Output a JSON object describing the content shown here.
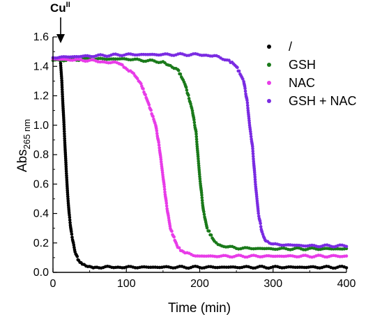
{
  "chart_data": {
    "type": "scatter",
    "title": "",
    "xlabel": "Time (min)",
    "ylabel": "Abs",
    "ylabel_subscript": "265 nm",
    "xlim": [
      0,
      400
    ],
    "ylim": [
      0,
      1.6
    ],
    "x_ticks": [
      0,
      100,
      200,
      300,
      400
    ],
    "y_ticks": [
      0.0,
      0.2,
      0.4,
      0.6,
      0.8,
      1.0,
      1.2,
      1.4,
      1.6
    ],
    "x_tick_labels": [
      "0",
      "100",
      "200",
      "300",
      "400"
    ],
    "y_tick_labels": [
      "0.0",
      "0.2",
      "0.4",
      "0.6",
      "0.8",
      "1.0",
      "1.2",
      "1.4",
      "1.6"
    ],
    "grid": false,
    "legend_position": "top-right",
    "annotation": {
      "text": "Cu",
      "superscript": "II",
      "x": 10,
      "arrow": "down"
    },
    "series": [
      {
        "name": "/",
        "color": "#000000",
        "points": [
          [
            10,
            1.45
          ],
          [
            12,
            1.3
          ],
          [
            14,
            1.1
          ],
          [
            16,
            0.9
          ],
          [
            18,
            0.7
          ],
          [
            20,
            0.53
          ],
          [
            22,
            0.4
          ],
          [
            25,
            0.27
          ],
          [
            30,
            0.14
          ],
          [
            35,
            0.08
          ],
          [
            40,
            0.055
          ],
          [
            50,
            0.04
          ],
          [
            60,
            0.035
          ],
          [
            100,
            0.035
          ],
          [
            200,
            0.035
          ],
          [
            300,
            0.035
          ],
          [
            400,
            0.035
          ]
        ]
      },
      {
        "name": "GSH",
        "color": "#1a7a1a",
        "points": [
          [
            0,
            1.44
          ],
          [
            50,
            1.45
          ],
          [
            100,
            1.45
          ],
          [
            150,
            1.43
          ],
          [
            170,
            1.38
          ],
          [
            180,
            1.28
          ],
          [
            190,
            1.1
          ],
          [
            195,
            0.95
          ],
          [
            200,
            0.65
          ],
          [
            205,
            0.42
          ],
          [
            210,
            0.3
          ],
          [
            220,
            0.21
          ],
          [
            230,
            0.18
          ],
          [
            250,
            0.165
          ],
          [
            300,
            0.16
          ],
          [
            350,
            0.16
          ],
          [
            400,
            0.16
          ]
        ]
      },
      {
        "name": "NAC",
        "color": "#e83ce8",
        "points": [
          [
            0,
            1.45
          ],
          [
            50,
            1.44
          ],
          [
            90,
            1.42
          ],
          [
            110,
            1.35
          ],
          [
            120,
            1.28
          ],
          [
            130,
            1.15
          ],
          [
            140,
            1.0
          ],
          [
            145,
            0.85
          ],
          [
            150,
            0.65
          ],
          [
            155,
            0.45
          ],
          [
            160,
            0.3
          ],
          [
            170,
            0.17
          ],
          [
            180,
            0.13
          ],
          [
            200,
            0.11
          ],
          [
            250,
            0.11
          ],
          [
            300,
            0.11
          ],
          [
            350,
            0.11
          ],
          [
            400,
            0.11
          ]
        ]
      },
      {
        "name": "GSH + NAC",
        "color": "#7a2be2",
        "points": [
          [
            0,
            1.46
          ],
          [
            50,
            1.47
          ],
          [
            100,
            1.48
          ],
          [
            150,
            1.48
          ],
          [
            200,
            1.48
          ],
          [
            220,
            1.47
          ],
          [
            240,
            1.44
          ],
          [
            250,
            1.4
          ],
          [
            260,
            1.3
          ],
          [
            265,
            1.15
          ],
          [
            268,
            1.0
          ],
          [
            272,
            0.85
          ],
          [
            276,
            0.6
          ],
          [
            280,
            0.4
          ],
          [
            285,
            0.27
          ],
          [
            290,
            0.21
          ],
          [
            300,
            0.19
          ],
          [
            350,
            0.18
          ],
          [
            400,
            0.18
          ]
        ]
      }
    ]
  }
}
